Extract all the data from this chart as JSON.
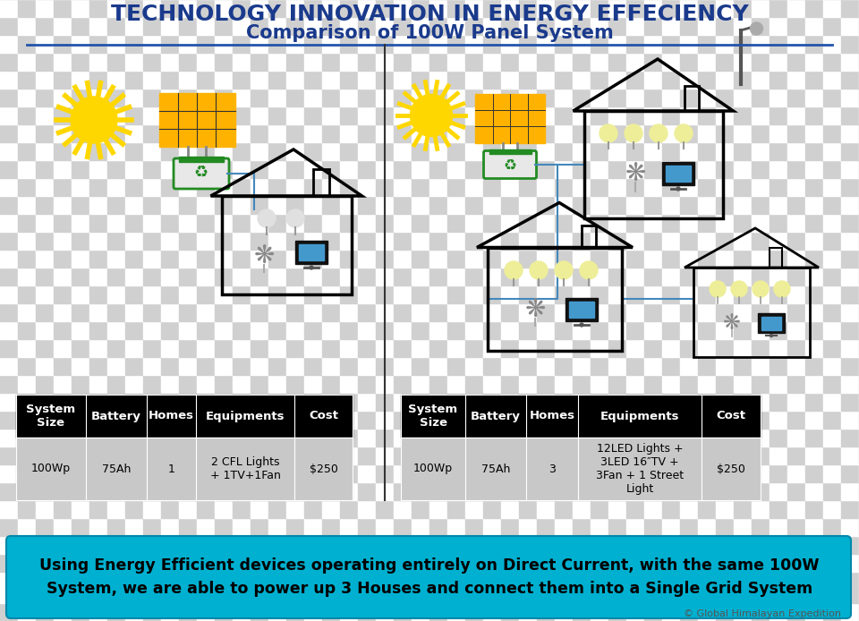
{
  "title_line1": "TECHNOLOGY INNOVATION IN ENERGY EFFECIENCY",
  "title_line2": "Comparison of 100W Panel System",
  "footer_text": "Using Energy Efficient devices operating entirely on Direct Current, with the same 100W\nSystem, we are able to power up 3 Houses and connect them into a Single Grid System",
  "copyright_text": "© Global Himalayan Expedition",
  "title_color": "#1a3a8c",
  "divider_color": "#2255aa",
  "footer_bg_color": "#00b0d0",
  "left_table_headers": [
    "System\nSize",
    "Battery",
    "Homes",
    "Equipments",
    "Cost"
  ],
  "left_table_row": [
    "100Wp",
    "75Ah",
    "1",
    "2 CFL Lights\n+ 1TV+1Fan",
    "$250"
  ],
  "right_table_headers": [
    "System\nSize",
    "Battery",
    "Homes",
    "Equipments",
    "Cost"
  ],
  "right_table_row": [
    "100Wp",
    "75Ah",
    "3",
    "12LED Lights +\n3LED 16″TV +\n3Fan + 1 Street\nLight",
    "$250"
  ],
  "header_bg": "#000000",
  "header_fg": "#ffffff",
  "row_bg": "#c8c8c8",
  "row_fg": "#000000"
}
